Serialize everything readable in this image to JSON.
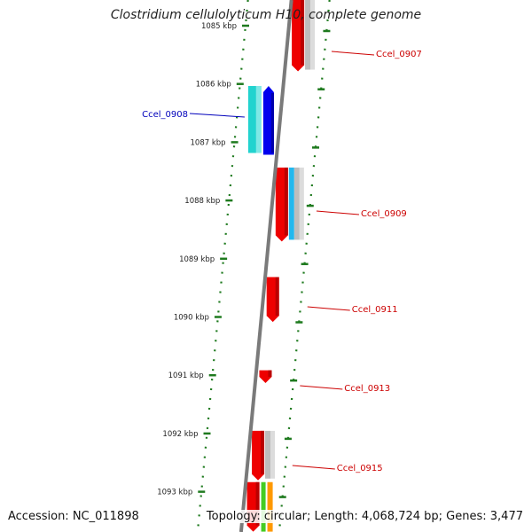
{
  "title": "Clostridium cellulolyticum H10, complete genome",
  "footer": {
    "accession": "Accession: NC_011898",
    "summary": "Topology: circular; Length: 4,068,724 bp; Genes: 3,477"
  },
  "colors": {
    "backbone": "#7a7a7a",
    "tick": "#1e7a1e",
    "forward_label": "#cc0000",
    "reverse_label": "#0000bb"
  },
  "ruler": [
    {
      "kbp": 1085,
      "label": "1085 kbp"
    },
    {
      "kbp": 1086,
      "label": "1086 kbp"
    },
    {
      "kbp": 1087,
      "label": "1087 kbp"
    },
    {
      "kbp": 1088,
      "label": "1088 kbp"
    },
    {
      "kbp": 1089,
      "label": "1089 kbp"
    },
    {
      "kbp": 1090,
      "label": "1090 kbp"
    },
    {
      "kbp": 1091,
      "label": "1091 kbp"
    },
    {
      "kbp": 1092,
      "label": "1092 kbp"
    },
    {
      "kbp": 1093,
      "label": "1093 kbp"
    }
  ],
  "genes": [
    {
      "label": "Ccel_0907",
      "strand": "+",
      "start_kbp": 1084.5,
      "end_kbp": 1085.8
    },
    {
      "label": "Ccel_0908",
      "strand": "-",
      "start_kbp": 1086.05,
      "end_kbp": 1087.2
    },
    {
      "label": "Ccel_0909",
      "strand": "+",
      "start_kbp": 1087.45,
      "end_kbp": 1088.72
    },
    {
      "label": "Ccel_0911",
      "strand": "+",
      "start_kbp": 1089.33,
      "end_kbp": 1090.1
    },
    {
      "label": "Ccel_0913",
      "strand": "+",
      "start_kbp": 1090.93,
      "end_kbp": 1091.15
    },
    {
      "label": "Ccel_0915",
      "strand": "+",
      "start_kbp": 1091.97,
      "end_kbp": 1092.82
    },
    {
      "label": "",
      "strand": "+",
      "start_kbp": 1092.85,
      "end_kbp": 1093.7
    }
  ]
}
